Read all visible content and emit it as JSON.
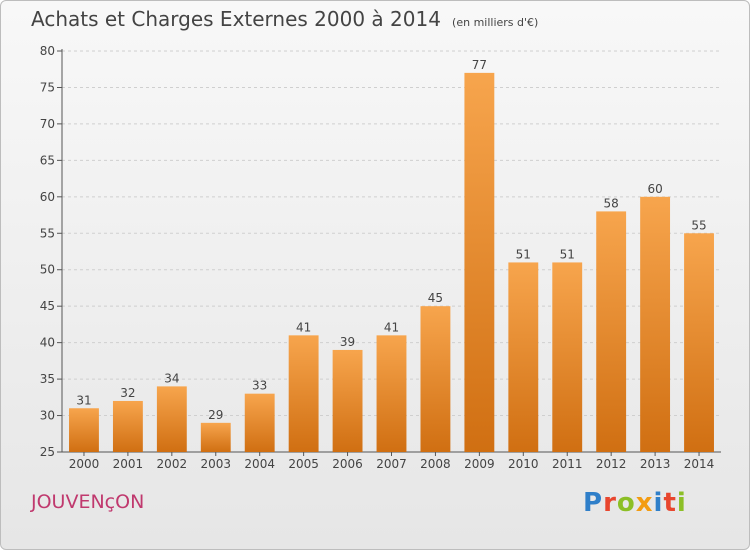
{
  "header": {
    "title": "Achats et Charges Externes 2000 à 2014",
    "subtitle": "(en milliers d'€)"
  },
  "place_name": "JOUVENçON",
  "logo": {
    "text": "Proxiti",
    "colors": [
      "#2f7fc9",
      "#e8462e",
      "#8cbf26",
      "#f39c12",
      "#2f7fc9",
      "#e8462e",
      "#8cbf26"
    ]
  },
  "colors": {
    "bar_light": "#f7a54d",
    "bar_dark": "#d06f12",
    "grid": "#cfcfcf",
    "axis": "#555555",
    "text": "#444444",
    "place": "#c0396e"
  },
  "chart_data": {
    "type": "bar",
    "title": "Achats et Charges Externes 2000 à 2014",
    "subtitle": "(en milliers d'€)",
    "categories": [
      "2000",
      "2001",
      "2002",
      "2003",
      "2004",
      "2005",
      "2006",
      "2007",
      "2008",
      "2009",
      "2010",
      "2011",
      "2012",
      "2013",
      "2014"
    ],
    "values": [
      31,
      32,
      34,
      29,
      33,
      41,
      39,
      41,
      45,
      77,
      51,
      51,
      58,
      60,
      55
    ],
    "data_labels": [
      "31",
      "32",
      "34",
      "29",
      "33",
      "41",
      "39",
      "41",
      "45",
      "77",
      "51",
      "51",
      "58",
      "60",
      "55"
    ],
    "ylim": [
      25,
      80
    ],
    "yticks": [
      25,
      30,
      35,
      40,
      45,
      50,
      55,
      60,
      65,
      70,
      75,
      80
    ],
    "grid": true,
    "legend": false
  }
}
